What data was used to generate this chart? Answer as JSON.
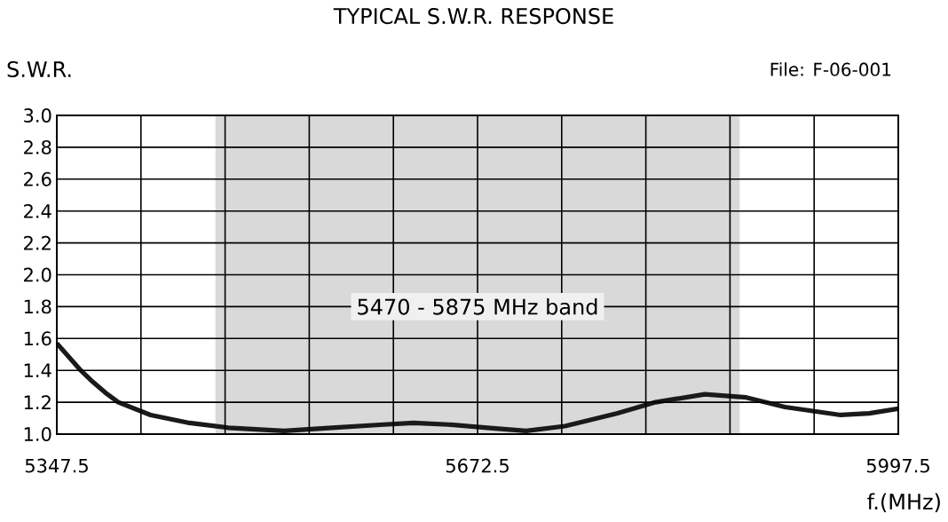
{
  "chart_data": {
    "type": "line",
    "title": "TYPICAL S.W.R. RESPONSE",
    "ylabel": "S.W.R.",
    "xlabel": "f.(MHz)",
    "annotations": [
      "File:  F-06-001"
    ],
    "x": [
      5347.5,
      5366,
      5375,
      5385,
      5395,
      5420,
      5450,
      5480,
      5523,
      5560,
      5600,
      5623,
      5650,
      5680,
      5710,
      5740,
      5780,
      5810,
      5848,
      5880,
      5910,
      5953,
      5975,
      5997.5
    ],
    "series": [
      {
        "color": "#1a1a1a",
        "values": [
          1.57,
          1.4,
          1.33,
          1.26,
          1.2,
          1.12,
          1.07,
          1.04,
          1.02,
          1.04,
          1.06,
          1.07,
          1.06,
          1.04,
          1.02,
          1.05,
          1.13,
          1.2,
          1.25,
          1.23,
          1.17,
          1.12,
          1.13,
          1.16
        ]
      }
    ],
    "xlim": [
      5347.5,
      5997.5
    ],
    "xticks": [
      5347.5,
      {
        "value": 5412.5,
        "label": null
      },
      {
        "value": 5477.5,
        "label": null
      },
      {
        "value": 5542.5,
        "label": null
      },
      {
        "value": 5607.5,
        "label": null
      },
      5672.5,
      {
        "value": 5737.5,
        "label": null
      },
      {
        "value": 5802.5,
        "label": null
      },
      {
        "value": 5867.5,
        "label": null
      },
      {
        "value": 5932.5,
        "label": null
      },
      5997.5
    ],
    "ylim": [
      1.0,
      3.0
    ],
    "yticks": [
      {
        "value": 1.0,
        "label": "1.0"
      },
      1.2,
      1.4,
      1.6,
      1.8,
      {
        "value": 2.0,
        "label": "2.0"
      },
      2.2,
      2.4,
      2.6,
      2.8,
      {
        "value": 3.0,
        "label": "3.0"
      }
    ],
    "grid": true,
    "bands": [
      {
        "axis": "x",
        "from": 5470,
        "to": 5875,
        "label": "5470 - 5875 MHz band",
        "color": "#d9d9d9"
      }
    ]
  }
}
